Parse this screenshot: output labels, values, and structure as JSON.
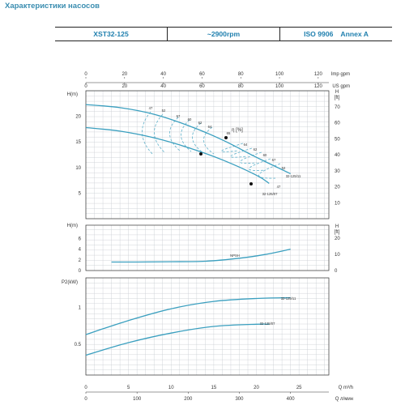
{
  "title": "Характеристики насосов",
  "header": {
    "model": "XST32-125",
    "speed": "~2900rpm",
    "standard": "ISO 9906",
    "grade": "Annex A"
  },
  "colors": {
    "curve": "#3a9fbf",
    "efficiency": "#6fb8cf",
    "grid": "#c6ccd0",
    "title": "#3a8db0",
    "axis": "#333333"
  },
  "chart_data": [
    {
      "type": "line",
      "panel": "head",
      "ylabel": "H(m)",
      "ylabel_right": "H [ft]",
      "yticks": [
        5,
        10,
        15,
        20
      ],
      "yticks_right": [
        10,
        20,
        30,
        40,
        50,
        60,
        70
      ],
      "ylim": [
        0,
        25
      ],
      "ylim_right": [
        0,
        80
      ],
      "xlim": [
        0,
        28.5
      ],
      "x_unit": "Q m³/h",
      "top_axis_1": {
        "label": "Imp gpm",
        "ticks": [
          0,
          20,
          40,
          60,
          80,
          100,
          120
        ]
      },
      "top_axis_2": {
        "label": "US gpm",
        "ticks": [
          0,
          20,
          40,
          60,
          80,
          100,
          120
        ]
      },
      "series": [
        {
          "name": "32-125/11",
          "x": [
            0,
            4,
            8,
            12,
            16,
            20,
            24
          ],
          "y": [
            22.3,
            21.7,
            20.4,
            18.2,
            15.4,
            12.0,
            8.8
          ]
        },
        {
          "name": "32-125/07",
          "x": [
            0,
            4,
            8,
            12,
            16,
            20,
            21.5
          ],
          "y": [
            17.8,
            17.1,
            15.8,
            13.9,
            11.5,
            8.5,
            6.9
          ]
        }
      ],
      "efficiency_label": "η [%]",
      "efficiency_contours": [
        "47",
        "52",
        "57",
        "60",
        "62",
        "64",
        "65",
        "64",
        "62",
        "60",
        "57",
        "52",
        "47"
      ]
    },
    {
      "type": "line",
      "panel": "npsh",
      "ylabel": "H(m)",
      "ylabel_right": "H [ft]",
      "yticks": [
        0,
        2,
        4,
        6
      ],
      "yticks_right": [
        0,
        10,
        20
      ],
      "ylim": [
        0,
        8.5
      ],
      "xlim": [
        0,
        28.5
      ],
      "series": [
        {
          "name": "NPSH",
          "x": [
            3,
            6,
            10,
            14,
            18,
            21,
            24
          ],
          "y": [
            1.6,
            1.6,
            1.65,
            1.75,
            2.3,
            3.0,
            4.0
          ]
        }
      ]
    },
    {
      "type": "line",
      "panel": "power",
      "ylabel": "P2(kW)",
      "yticks": [
        0.5,
        1
      ],
      "ylim": [
        0.08,
        1.4
      ],
      "xlim": [
        0,
        28.5
      ],
      "series": [
        {
          "name": "32-125/11",
          "x": [
            0,
            5,
            10,
            15,
            20,
            24
          ],
          "y": [
            0.63,
            0.82,
            0.98,
            1.08,
            1.12,
            1.13
          ]
        },
        {
          "name": "32-125/07",
          "x": [
            0,
            5,
            10,
            15,
            20,
            21.5
          ],
          "y": [
            0.35,
            0.52,
            0.65,
            0.74,
            0.77,
            0.77
          ]
        }
      ],
      "x_axis_1": {
        "label": "Q m³/h",
        "ticks": [
          0,
          5,
          10,
          15,
          20,
          25
        ]
      },
      "x_axis_2": {
        "label": "Q л/мин",
        "ticks": [
          0,
          100,
          200,
          300,
          400
        ]
      }
    }
  ]
}
